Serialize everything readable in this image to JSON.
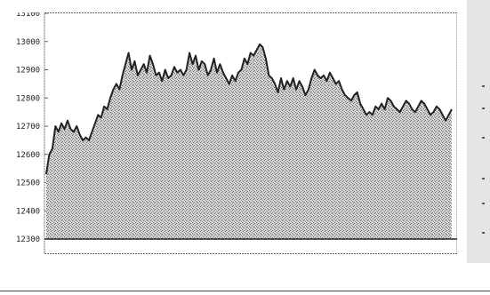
{
  "colors": {
    "ink": "#222222",
    "panel": "#e6e6e6",
    "fill_dot": "#555555"
  },
  "chart_data": {
    "type": "area",
    "title": "",
    "xlabel": "",
    "ylabel": "",
    "ylim": [
      12300,
      13100
    ],
    "yticks": [
      12300,
      12400,
      12500,
      12600,
      12700,
      12800,
      12900,
      13000,
      13100
    ],
    "ytick_labels": [
      "12300",
      "12400",
      "12500",
      "12600",
      "12700",
      "12800",
      "12900",
      "13000",
      "13100"
    ],
    "grid": false,
    "legend": "none",
    "series": [
      {
        "values": [
          12530,
          12600,
          12620,
          12700,
          12680,
          12710,
          12690,
          12720,
          12690,
          12680,
          12700,
          12670,
          12650,
          12660,
          12650,
          12680,
          12710,
          12740,
          12730,
          12770,
          12760,
          12800,
          12830,
          12850,
          12830,
          12880,
          12920,
          12960,
          12900,
          12930,
          12880,
          12900,
          12920,
          12890,
          12950,
          12920,
          12880,
          12890,
          12860,
          12900,
          12870,
          12880,
          12910,
          12890,
          12900,
          12880,
          12900,
          12960,
          12920,
          12950,
          12900,
          12930,
          12920,
          12880,
          12900,
          12940,
          12890,
          12920,
          12890,
          12870,
          12850,
          12880,
          12860,
          12890,
          12900,
          12940,
          12920,
          12960,
          12950,
          12970,
          12990,
          12980,
          12940,
          12880,
          12870,
          12850,
          12820,
          12870,
          12830,
          12860,
          12840,
          12870,
          12830,
          12860,
          12840,
          12810,
          12830,
          12870,
          12900,
          12880,
          12870,
          12880,
          12860,
          12890,
          12870,
          12850,
          12860,
          12830,
          12810,
          12800,
          12790,
          12810,
          12820,
          12780,
          12760,
          12740,
          12750,
          12740,
          12770,
          12760,
          12780,
          12760,
          12800,
          12790,
          12770,
          12760,
          12750,
          12770,
          12790,
          12780,
          12760,
          12750,
          12770,
          12790,
          12780,
          12760,
          12740,
          12750,
          12770,
          12760,
          12740,
          12720,
          12740,
          12760
        ]
      }
    ]
  }
}
